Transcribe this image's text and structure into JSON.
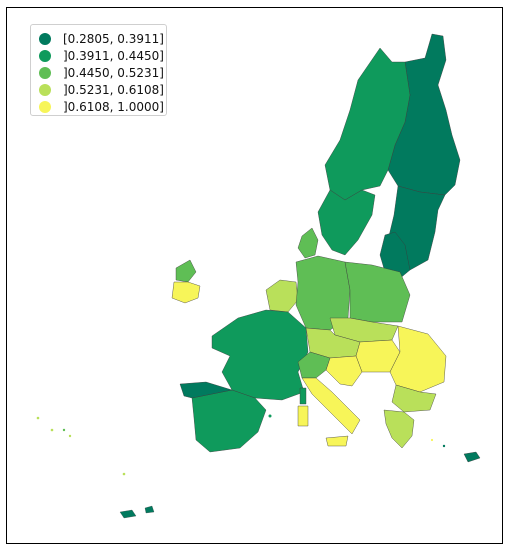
{
  "legend": {
    "items": [
      {
        "label": "[0.2805, 0.3911]",
        "color": "#017a5e"
      },
      {
        "label": "]0.3911, 0.4450]",
        "color": "#0f9a5c"
      },
      {
        "label": "]0.4450, 0.5231]",
        "color": "#5fbe55"
      },
      {
        "label": "]0.5231, 0.6108]",
        "color": "#b9e05a"
      },
      {
        "label": "]0.6108, 1.0000]",
        "color": "#f7f559"
      }
    ]
  },
  "map": {
    "regions": [
      {
        "name": "northern-finland",
        "class": 0
      },
      {
        "name": "southern-finland",
        "class": 0
      },
      {
        "name": "northern-sweden",
        "class": 1
      },
      {
        "name": "southern-sweden",
        "class": 1
      },
      {
        "name": "baltic-states",
        "class": 0
      },
      {
        "name": "denmark",
        "class": 2
      },
      {
        "name": "ireland",
        "class": 4
      },
      {
        "name": "northern-ireland",
        "class": 2
      },
      {
        "name": "france",
        "class": 1
      },
      {
        "name": "benelux",
        "class": 3
      },
      {
        "name": "germany",
        "class": 2
      },
      {
        "name": "poland",
        "class": 2
      },
      {
        "name": "czechia-slovakia",
        "class": 3
      },
      {
        "name": "austria",
        "class": 3
      },
      {
        "name": "hungary",
        "class": 4
      },
      {
        "name": "romania",
        "class": 4
      },
      {
        "name": "bulgaria",
        "class": 3
      },
      {
        "name": "iberia",
        "class": 1
      },
      {
        "name": "portugal-north",
        "class": 0
      },
      {
        "name": "italy-north",
        "class": 2
      },
      {
        "name": "italy-south",
        "class": 4
      },
      {
        "name": "sardinia",
        "class": 4
      },
      {
        "name": "sicily",
        "class": 4
      },
      {
        "name": "croatia-slovenia",
        "class": 4
      },
      {
        "name": "greece",
        "class": 3
      },
      {
        "name": "crete",
        "class": 0
      },
      {
        "name": "corsica",
        "class": 1
      }
    ]
  }
}
